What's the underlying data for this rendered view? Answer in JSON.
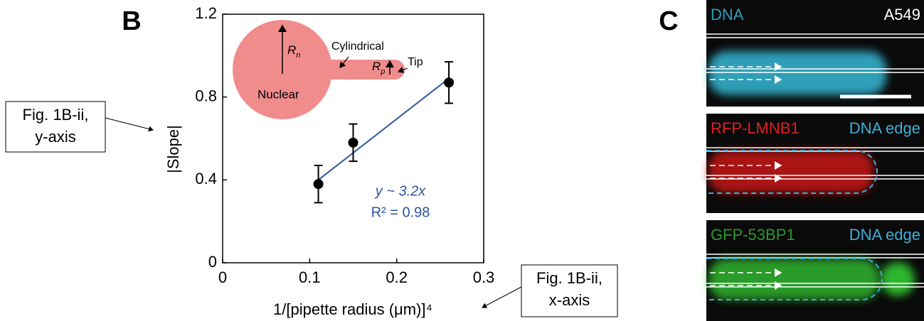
{
  "chart_data": {
    "type": "scatter",
    "panel_label": "B",
    "x_label": "1/[pipette radius (μm)]⁴",
    "y_label": "|Slope|",
    "x": [
      0.11,
      0.15,
      0.26
    ],
    "values": [
      0.38,
      0.58,
      0.87
    ],
    "errors": [
      0.09,
      0.09,
      0.1
    ],
    "color": "#000000",
    "fit": {
      "x": [
        0.11,
        0.26
      ],
      "values": [
        0.4,
        0.89
      ],
      "color": "#2e55a0"
    },
    "fit_equation": "y ~ 3.2x",
    "fit_r2": "R² = 0.98",
    "xlim": [
      0,
      0.3
    ],
    "xticks": [
      0,
      0.1,
      0.2,
      0.3
    ],
    "ylim": [
      0,
      1.2
    ],
    "yticks": [
      0,
      0.4,
      0.8,
      1.2
    ],
    "inset": {
      "radius_nuclear": {
        "main": "R",
        "sub": "n"
      },
      "radius_pipette": {
        "main": "R",
        "sub": "p"
      },
      "cylindrical": "Cylindrical",
      "tip": "Tip",
      "nuclear": "Nuclear"
    },
    "callouts": {
      "y": [
        "Fig. 1B-ii,",
        "y-axis"
      ],
      "x": [
        "Fig. 1B-ii,",
        "x-axis"
      ]
    }
  },
  "panel_c": {
    "panel_label": "C",
    "cell_line": "A549",
    "images": [
      {
        "label": "DNA"
      },
      {
        "label": "RFP-LMNB1",
        "edge": "DNA edge"
      },
      {
        "label": "GFP-53BP1",
        "edge": "DNA edge"
      }
    ]
  }
}
